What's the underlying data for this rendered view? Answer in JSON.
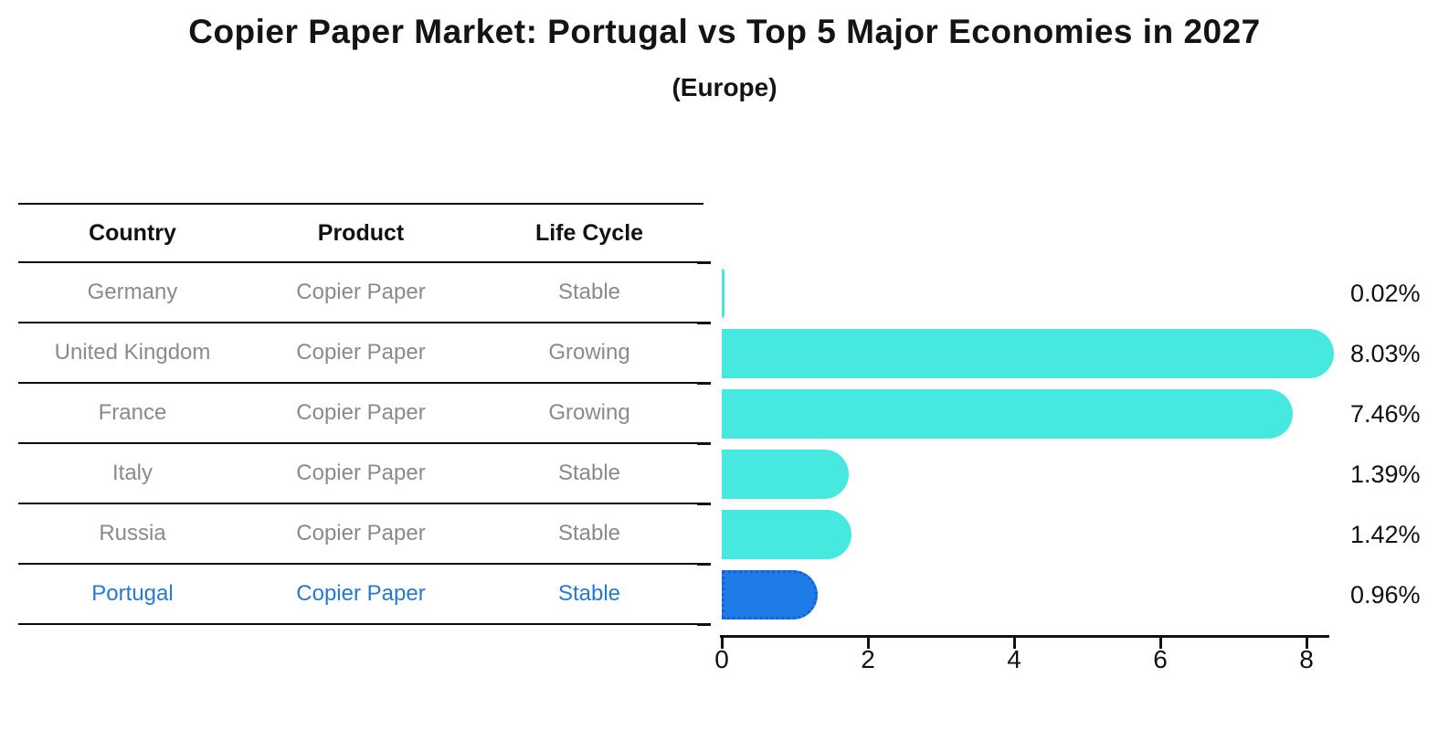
{
  "title": "Copier Paper Market: Portugal vs Top 5 Major Economies in 2027",
  "subtitle": "(Europe)",
  "table": {
    "columns": [
      "Country",
      "Product",
      "Life Cycle"
    ]
  },
  "rows": [
    {
      "country": "Germany",
      "product": "Copier Paper",
      "life_cycle": "Stable",
      "value": 0.02,
      "value_label": "0.02%",
      "highlight": false
    },
    {
      "country": "United Kingdom",
      "product": "Copier Paper",
      "life_cycle": "Growing",
      "value": 8.03,
      "value_label": "8.03%",
      "highlight": false
    },
    {
      "country": "France",
      "product": "Copier Paper",
      "life_cycle": "Growing",
      "value": 7.46,
      "value_label": "7.46%",
      "highlight": false
    },
    {
      "country": "Italy",
      "product": "Copier Paper",
      "life_cycle": "Stable",
      "value": 1.39,
      "value_label": "1.39%",
      "highlight": false
    },
    {
      "country": "Russia",
      "product": "Copier Paper",
      "life_cycle": "Stable",
      "value": 1.42,
      "value_label": "1.42%",
      "highlight": false
    },
    {
      "country": "Portugal",
      "product": "Copier Paper",
      "life_cycle": "Stable",
      "value": 0.96,
      "value_label": "0.96%",
      "highlight": true
    }
  ],
  "chart_data": {
    "type": "bar",
    "orientation": "horizontal",
    "title": "Copier Paper Market: Portugal vs Top 5 Major Economies in 2027",
    "subtitle": "(Europe)",
    "categories": [
      "Germany",
      "United Kingdom",
      "France",
      "Italy",
      "Russia",
      "Portugal"
    ],
    "values": [
      0.02,
      8.03,
      7.46,
      1.39,
      1.42,
      0.96
    ],
    "value_labels": [
      "0.02%",
      "8.03%",
      "7.46%",
      "1.39%",
      "1.42%",
      "0.96%"
    ],
    "xlabel": "",
    "ylabel": "",
    "xlim": [
      0,
      8.4
    ],
    "x_ticks": [
      0,
      2,
      4,
      6,
      8
    ],
    "grid": false,
    "legend": false,
    "highlight_category": "Portugal"
  },
  "colors": {
    "bar_default": "#47e8e0",
    "bar_highlight": "#1e7ce8",
    "bar_highlight_border": "#1a5fd6",
    "highlight_text": "#2479d2",
    "row_text": "#8a8a8a",
    "heading_text": "#111111",
    "axis_text": "#111111"
  }
}
